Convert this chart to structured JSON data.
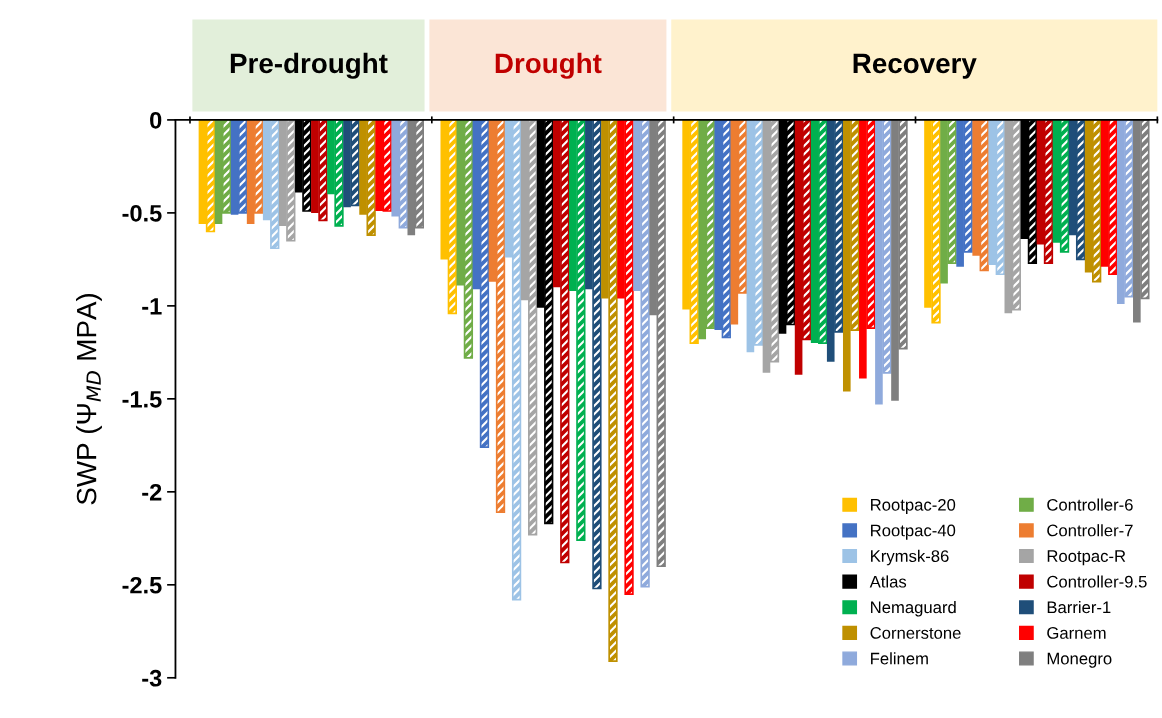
{
  "chart_data": {
    "type": "bar",
    "categories": [
      null,
      null,
      null,
      null
    ],
    "annotations": [
      "Pre-drought",
      "Drought",
      "Recovery"
    ],
    "ylabel": "SWP (Ψ$_{MD}$ MPA)",
    "ylim": [
      -3,
      0
    ],
    "yticks": [
      0,
      {
        "value": -0.5,
        "label": "-0.5"
      },
      {
        "value": -1,
        "label": "-1"
      },
      {
        "value": -1.5,
        "label": "-1.5"
      },
      {
        "value": -2,
        "label": "-2"
      },
      {
        "value": -2.5,
        "label": "-2.5"
      },
      {
        "value": -3,
        "label": "-3"
      }
    ],
    "grid": false,
    "legend": "bottom right",
    "series": [
      {
        "name": "Rootpac-20",
        "color": "#ffc000",
        "values": [
          -0.56,
          -0.75,
          -1.02,
          -1.01
        ]
      },
      {
        "color": "#ffc000",
        "values": [
          -0.6,
          -1.04,
          -1.2,
          -1.09
        ]
      },
      {
        "name": "Controller-6",
        "color": "#70ad47",
        "values": [
          -0.56,
          -0.89,
          -1.18,
          -0.88
        ]
      },
      {
        "color": "#70ad47",
        "values": [
          -0.5,
          -1.28,
          -1.12,
          -0.77
        ]
      },
      {
        "name": "Rootpac-40",
        "color": "#4472c4",
        "values": [
          -0.51,
          -0.91,
          -1.13,
          -0.79
        ]
      },
      {
        "color": "#4472c4",
        "values": [
          -0.5,
          -1.76,
          -1.17,
          -0.71
        ]
      },
      {
        "name": "Controller-7",
        "color": "#ed7d31",
        "values": [
          -0.56,
          -0.87,
          -1.1,
          -0.73
        ]
      },
      {
        "color": "#ed7d31",
        "values": [
          -0.5,
          -2.11,
          -0.93,
          -0.81
        ]
      },
      {
        "name": "Krymsk-86",
        "color": "#9dc3e6",
        "values": [
          -0.54,
          -0.74,
          -1.25,
          -0.78
        ]
      },
      {
        "color": "#9dc3e6",
        "values": [
          -0.69,
          -2.58,
          -1.21,
          -0.83
        ]
      },
      {
        "name": "Rootpac-R",
        "color": "#a5a5a5",
        "values": [
          -0.57,
          -0.97,
          -1.36,
          -1.04
        ]
      },
      {
        "color": "#a5a5a5",
        "values": [
          -0.65,
          -2.23,
          -1.3,
          -1.02
        ]
      },
      {
        "name": "Atlas",
        "color": "#000000",
        "values": [
          -0.39,
          -1.01,
          -1.15,
          -0.64
        ]
      },
      {
        "color": "#000000",
        "values": [
          -0.49,
          -2.17,
          -1.1,
          -0.77
        ]
      },
      {
        "name": "Controller-9.5",
        "color": "#c00000",
        "values": [
          -0.5,
          -0.9,
          -1.37,
          -0.67
        ]
      },
      {
        "color": "#c00000",
        "values": [
          -0.54,
          -2.38,
          -1.18,
          -0.77
        ]
      },
      {
        "name": "Nemaguard",
        "color": "#00b050",
        "values": [
          -0.4,
          -0.92,
          -1.2,
          -0.66
        ]
      },
      {
        "color": "#00b050",
        "values": [
          -0.57,
          -2.26,
          -1.2,
          -0.71
        ]
      },
      {
        "name": "Barrier-1",
        "color": "#1f4e79",
        "values": [
          -0.47,
          -0.91,
          -1.3,
          -0.62
        ]
      },
      {
        "color": "#1f4e79",
        "values": [
          -0.46,
          -2.52,
          -1.14,
          -0.75
        ]
      },
      {
        "name": "Cornerstone",
        "color": "#bf9000",
        "values": [
          -0.51,
          -0.96,
          -1.46,
          -0.82
        ]
      },
      {
        "color": "#bf9000",
        "values": [
          -0.62,
          -2.91,
          -1.13,
          -0.87
        ]
      },
      {
        "name": "Garnem",
        "color": "#ff0000",
        "values": [
          -0.49,
          -0.96,
          -1.39,
          -0.79
        ]
      },
      {
        "color": "#ff0000",
        "values": [
          -0.49,
          -2.55,
          -1.12,
          -0.83
        ]
      },
      {
        "name": "Felinem",
        "color": "#8faadc",
        "values": [
          -0.52,
          -0.92,
          -1.53,
          -0.99
        ]
      },
      {
        "color": "#8faadc",
        "values": [
          -0.58,
          -2.51,
          -1.36,
          -0.95
        ]
      },
      {
        "name": "Monegro",
        "color": "#7f7f7f",
        "values": [
          -0.62,
          -1.05,
          -1.51,
          -1.09
        ]
      },
      {
        "color": "#7f7f7f",
        "values": [
          -0.58,
          -2.4,
          -1.23,
          -0.96
        ]
      }
    ]
  }
}
